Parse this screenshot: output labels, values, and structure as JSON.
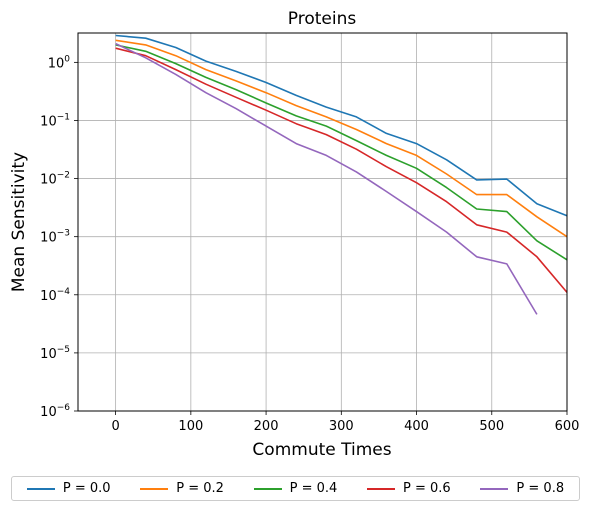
{
  "chart_data": {
    "type": "line",
    "title": "Proteins",
    "xlabel": "Commute Times",
    "ylabel": "Mean Sensitivity",
    "xlim": [
      -50,
      600
    ],
    "ylim": [
      1e-06,
      3.2
    ],
    "yscale": "log",
    "grid": true,
    "legend_position": "bottom",
    "x_ticks": [
      "0",
      "100",
      "200",
      "300",
      "400",
      "500",
      "600"
    ],
    "y_ticks": [
      {
        "mantissa": "10",
        "exp": "0"
      },
      {
        "mantissa": "10",
        "exp": "−1"
      },
      {
        "mantissa": "10",
        "exp": "−2"
      },
      {
        "mantissa": "10",
        "exp": "−3"
      },
      {
        "mantissa": "10",
        "exp": "−4"
      },
      {
        "mantissa": "10",
        "exp": "−5"
      },
      {
        "mantissa": "10",
        "exp": "−6"
      }
    ],
    "series": [
      {
        "name": "P = 0.0",
        "color": "#1f77b4",
        "x": [
          0,
          40,
          80,
          120,
          160,
          200,
          240,
          280,
          320,
          360,
          400,
          440,
          480,
          520,
          560,
          600
        ],
        "y": [
          2.9,
          2.6,
          1.8,
          1.05,
          0.7,
          0.45,
          0.27,
          0.17,
          0.115,
          0.06,
          0.04,
          0.021,
          0.0095,
          0.0098,
          0.0037,
          0.0023
        ]
      },
      {
        "name": "P = 0.2",
        "color": "#ff7f0e",
        "x": [
          0,
          40,
          80,
          120,
          160,
          200,
          240,
          280,
          320,
          360,
          400,
          440,
          480,
          520,
          560,
          600
        ],
        "y": [
          2.4,
          2.0,
          1.3,
          0.75,
          0.48,
          0.3,
          0.18,
          0.115,
          0.07,
          0.04,
          0.025,
          0.012,
          0.0053,
          0.0053,
          0.0022,
          0.001
        ]
      },
      {
        "name": "P = 0.4",
        "color": "#2ca02c",
        "x": [
          0,
          40,
          80,
          120,
          160,
          200,
          240,
          280,
          320,
          360,
          400,
          440,
          480,
          520,
          560,
          600
        ],
        "y": [
          2.0,
          1.55,
          0.95,
          0.55,
          0.34,
          0.2,
          0.12,
          0.08,
          0.045,
          0.025,
          0.015,
          0.007,
          0.003,
          0.0027,
          0.00085,
          0.0004
        ]
      },
      {
        "name": "P = 0.6",
        "color": "#d62728",
        "x": [
          0,
          40,
          80,
          120,
          160,
          200,
          240,
          280,
          320,
          360,
          400,
          440,
          480,
          520,
          560,
          600
        ],
        "y": [
          1.75,
          1.3,
          0.75,
          0.42,
          0.25,
          0.15,
          0.088,
          0.057,
          0.032,
          0.016,
          0.0085,
          0.004,
          0.0016,
          0.0012,
          0.00045,
          0.00011
        ]
      },
      {
        "name": "P = 0.8",
        "color": "#9467bd",
        "x": [
          0,
          40,
          80,
          120,
          160,
          200,
          240,
          280,
          320,
          360,
          400,
          440,
          480,
          520,
          560
        ],
        "y": [
          2.1,
          1.2,
          0.62,
          0.3,
          0.16,
          0.08,
          0.04,
          0.025,
          0.013,
          0.006,
          0.0027,
          0.0012,
          0.00045,
          0.00034,
          4.6e-05
        ]
      }
    ]
  }
}
